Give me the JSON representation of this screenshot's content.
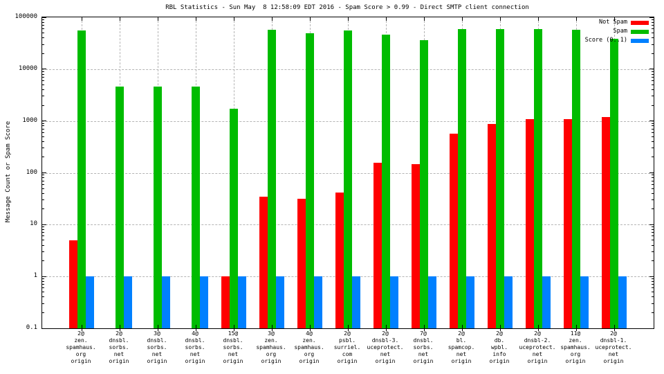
{
  "title": "RBL Statistics - Sun May  8 12:58:09 EDT 2016 - Spam Score > 0.99 - Direct SMTP client connection",
  "chart_data": {
    "type": "bar",
    "title": "RBL Statistics - Sun May  8 12:58:09 EDT 2016 - Spam Score > 0.99 - Direct SMTP client connection",
    "xlabel": "",
    "ylabel": "Message Count or Spam Score",
    "yscale": "log",
    "ylim": [
      0.1,
      100000
    ],
    "ytick_labels": [
      "0.1",
      "1",
      "10",
      "100",
      "1000",
      "10000",
      "100000"
    ],
    "grid": true,
    "legend_position": "top-right",
    "background": "#ffffff",
    "grid_color": "#b4b4b4",
    "categories": [
      [
        "2@",
        "zen.",
        "spamhaus.",
        "org",
        "origin"
      ],
      [
        "2@",
        "dnsbl.",
        "sorbs.",
        "net",
        "origin"
      ],
      [
        "3@",
        "dnsbl.",
        "sorbs.",
        "net",
        "origin"
      ],
      [
        "4@",
        "dnsbl.",
        "sorbs.",
        "net",
        "origin"
      ],
      [
        "15@",
        "dnsbl.",
        "sorbs.",
        "net",
        "origin"
      ],
      [
        "3@",
        "zen.",
        "spamhaus.",
        "org",
        "origin"
      ],
      [
        "4@",
        "zen.",
        "spamhaus.",
        "org",
        "origin"
      ],
      [
        "2@",
        "psbl.",
        "surriel.",
        "com",
        "origin"
      ],
      [
        "2@",
        "dnsbl-3.",
        "uceprotect.",
        "net",
        "origin"
      ],
      [
        "7@",
        "dnsbl.",
        "sorbs.",
        "net",
        "origin"
      ],
      [
        "2@",
        "bl.",
        "spamcop.",
        "net",
        "origin"
      ],
      [
        "2@",
        "db.",
        "wpbl.",
        "info",
        "origin"
      ],
      [
        "2@",
        "dnsbl-2.",
        "uceprotect.",
        "net",
        "origin"
      ],
      [
        "11@",
        "zen.",
        "spamhaus.",
        "org",
        "origin"
      ],
      [
        "2@",
        "dnsbl-1.",
        "uceprotect.",
        "net",
        "origin"
      ]
    ],
    "series": [
      {
        "name": "Not Spam",
        "color": "#ff0000",
        "values": [
          5,
          0,
          0,
          0,
          1,
          35,
          32,
          42,
          155,
          145,
          570,
          875,
          1100,
          1070,
          1200
        ]
      },
      {
        "name": "Spam",
        "color": "#00bc00",
        "values": [
          55000,
          4600,
          4600,
          4600,
          1700,
          57000,
          50000,
          56000,
          47000,
          36000,
          60000,
          60000,
          60000,
          58000,
          39000
        ]
      },
      {
        "name": "Score (0..1)",
        "color": "#0080ff",
        "values": [
          1,
          1,
          1,
          1,
          1,
          1,
          1,
          1,
          1,
          1,
          1,
          1,
          1,
          1,
          1
        ]
      }
    ]
  }
}
